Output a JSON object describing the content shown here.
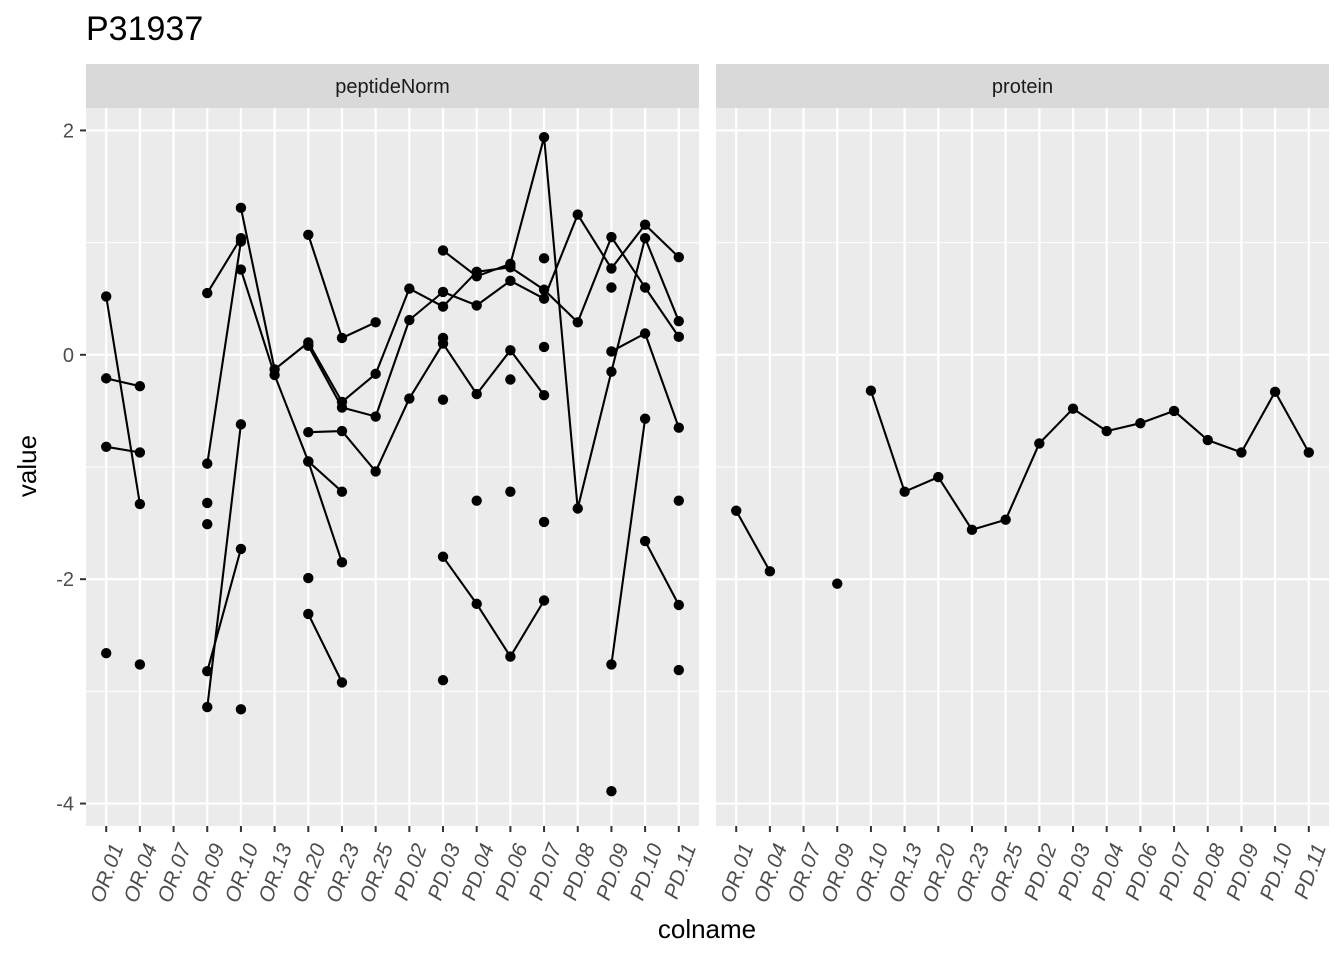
{
  "chart_data": {
    "type": "line",
    "title": "P31937",
    "xlabel": "colname",
    "ylabel": "value",
    "ylim": [
      -4.2,
      2.2
    ],
    "yticks": [
      -4,
      -2,
      0,
      2
    ],
    "ytick_labels": [
      "-4",
      "-2",
      "0",
      "2"
    ],
    "grid": true,
    "categories": [
      "OR.01",
      "OR.04",
      "OR.07",
      "OR.09",
      "OR.10",
      "OR.13",
      "OR.20",
      "OR.23",
      "OR.25",
      "PD.02",
      "PD.03",
      "PD.04",
      "PD.06",
      "PD.07",
      "PD.08",
      "PD.09",
      "PD.10",
      "PD.11"
    ],
    "panels": [
      {
        "label": "peptideNorm",
        "lines": [
          [
            [
              "OR.01",
              0.52
            ],
            [
              "OR.04",
              -1.33
            ]
          ],
          [
            [
              "OR.01",
              -0.21
            ],
            [
              "OR.04",
              -0.28
            ]
          ],
          [
            [
              "OR.01",
              -0.82
            ],
            [
              "OR.04",
              -0.87
            ]
          ],
          [
            [
              "OR.09",
              0.55
            ],
            [
              "OR.10",
              1.04
            ]
          ],
          [
            [
              "OR.09",
              -0.97
            ],
            [
              "OR.10",
              1.01
            ]
          ],
          [
            [
              "OR.09",
              -2.82
            ],
            [
              "OR.10",
              -1.73
            ]
          ],
          [
            [
              "OR.09",
              -3.14
            ],
            [
              "OR.10",
              -0.62
            ]
          ],
          [
            [
              "OR.10",
              1.31
            ],
            [
              "OR.13",
              -0.13
            ],
            [
              "OR.20",
              0.11
            ],
            [
              "OR.23",
              -0.42
            ],
            [
              "OR.25",
              -0.17
            ],
            [
              "PD.02",
              0.59
            ],
            [
              "PD.03",
              0.43
            ],
            [
              "PD.04",
              0.74
            ],
            [
              "PD.06",
              0.78
            ],
            [
              "PD.07",
              0.58
            ],
            [
              "PD.08",
              0.29
            ],
            [
              "PD.09",
              1.05
            ],
            [
              "PD.10",
              0.6
            ],
            [
              "PD.11",
              0.16
            ]
          ],
          [
            [
              "OR.10",
              0.76
            ],
            [
              "OR.13",
              -0.18
            ],
            [
              "OR.20",
              -0.95
            ],
            [
              "OR.23",
              -1.85
            ]
          ],
          [
            [
              "OR.20",
              1.07
            ],
            [
              "OR.23",
              0.15
            ],
            [
              "OR.25",
              0.29
            ]
          ],
          [
            [
              "OR.20",
              0.08
            ],
            [
              "OR.23",
              -0.47
            ],
            [
              "OR.25",
              -0.55
            ],
            [
              "PD.02",
              0.31
            ],
            [
              "PD.03",
              0.56
            ],
            [
              "PD.04",
              0.44
            ],
            [
              "PD.06",
              0.66
            ],
            [
              "PD.07",
              0.5
            ],
            [
              "PD.08",
              1.25
            ],
            [
              "PD.09",
              0.77
            ],
            [
              "PD.10",
              1.16
            ],
            [
              "PD.11",
              0.87
            ]
          ],
          [
            [
              "OR.20",
              -0.69
            ],
            [
              "OR.23",
              -0.68
            ],
            [
              "OR.25",
              -1.04
            ],
            [
              "PD.02",
              -0.39
            ],
            [
              "PD.03",
              0.1
            ],
            [
              "PD.04",
              -0.35
            ],
            [
              "PD.06",
              0.04
            ],
            [
              "PD.07",
              -0.36
            ]
          ],
          [
            [
              "OR.20",
              -0.95
            ],
            [
              "OR.23",
              -1.22
            ]
          ],
          [
            [
              "OR.20",
              -2.31
            ],
            [
              "OR.23",
              -2.92
            ]
          ],
          [
            [
              "PD.03",
              0.93
            ],
            [
              "PD.04",
              0.7
            ],
            [
              "PD.06",
              0.81
            ],
            [
              "PD.07",
              1.94
            ],
            [
              "PD.08",
              -1.37
            ],
            [
              "PD.09",
              -0.15
            ],
            [
              "PD.10",
              1.04
            ],
            [
              "PD.11",
              0.3
            ]
          ],
          [
            [
              "PD.03",
              -1.8
            ],
            [
              "PD.04",
              -2.22
            ],
            [
              "PD.06",
              -2.69
            ],
            [
              "PD.07",
              -2.19
            ]
          ],
          [
            [
              "PD.09",
              0.03
            ],
            [
              "PD.10",
              0.19
            ],
            [
              "PD.11",
              -0.65
            ]
          ],
          [
            [
              "PD.09",
              -2.76
            ],
            [
              "PD.10",
              -0.57
            ]
          ],
          [
            [
              "PD.10",
              -1.66
            ],
            [
              "PD.11",
              -2.23
            ]
          ]
        ],
        "points": [
          [
            "OR.01",
            -2.66
          ],
          [
            "OR.04",
            -2.76
          ],
          [
            "OR.09",
            -1.51
          ],
          [
            "OR.09",
            -1.32
          ],
          [
            "OR.10",
            -3.16
          ],
          [
            "OR.20",
            -1.99
          ],
          [
            "PD.03",
            0.15
          ],
          [
            "PD.03",
            -0.4
          ],
          [
            "PD.03",
            -2.9
          ],
          [
            "PD.04",
            -1.3
          ],
          [
            "PD.06",
            -0.22
          ],
          [
            "PD.06",
            -1.22
          ],
          [
            "PD.07",
            0.86
          ],
          [
            "PD.07",
            0.07
          ],
          [
            "PD.07",
            -1.49
          ],
          [
            "PD.09",
            0.6
          ],
          [
            "PD.09",
            -3.89
          ],
          [
            "PD.11",
            -1.3
          ],
          [
            "PD.11",
            -2.81
          ]
        ]
      },
      {
        "label": "protein",
        "lines": [
          [
            [
              "OR.01",
              -1.39
            ],
            [
              "OR.04",
              -1.93
            ]
          ],
          [
            [
              "OR.10",
              -0.32
            ],
            [
              "OR.13",
              -1.22
            ],
            [
              "OR.20",
              -1.09
            ],
            [
              "OR.23",
              -1.56
            ],
            [
              "OR.25",
              -1.47
            ],
            [
              "PD.02",
              -0.79
            ],
            [
              "PD.03",
              -0.48
            ],
            [
              "PD.04",
              -0.68
            ],
            [
              "PD.06",
              -0.61
            ],
            [
              "PD.07",
              -0.5
            ],
            [
              "PD.08",
              -0.76
            ],
            [
              "PD.09",
              -0.87
            ],
            [
              "PD.10",
              -0.33
            ],
            [
              "PD.11",
              -0.87
            ]
          ]
        ],
        "points": [
          [
            "OR.09",
            -2.04
          ]
        ]
      }
    ],
    "colors": {
      "panel_bg": "#EBEBEB",
      "strip_bg": "#D9D9D9",
      "grid": "#FFFFFF",
      "line": "#000000",
      "point": "#000000",
      "text": "#1A1A1A",
      "tick_text": "#4D4D4D",
      "tick": "#333333"
    }
  }
}
